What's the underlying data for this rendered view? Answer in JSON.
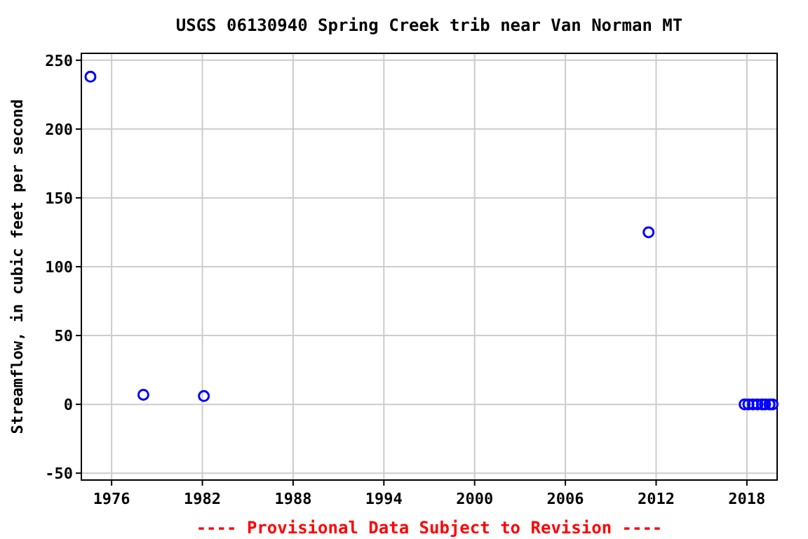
{
  "chart_data": {
    "type": "scatter",
    "title": "USGS 06130940 Spring Creek trib near Van Norman MT",
    "ylabel": "Streamflow, in cubic feet per second",
    "x": [
      1974.6,
      1978.1,
      1982.1,
      2011.5,
      2017.85,
      2018.1,
      2018.4,
      2018.7,
      2019.0,
      2019.2,
      2019.5,
      2019.7
    ],
    "values": [
      238,
      7,
      6,
      125,
      0,
      0,
      0,
      0,
      0,
      0,
      0,
      0
    ],
    "color": "#0000ff",
    "marker": "circle",
    "xlim": [
      1974,
      2020
    ],
    "xticks": [
      1976,
      1982,
      1988,
      1994,
      2000,
      2006,
      2012,
      2018
    ],
    "ylim": [
      -55,
      255
    ],
    "yticks": [
      -50,
      0,
      50,
      100,
      150,
      200,
      250
    ],
    "grid": true,
    "annotations": [
      "---- Provisional Data Subject to Revision ----"
    ]
  }
}
